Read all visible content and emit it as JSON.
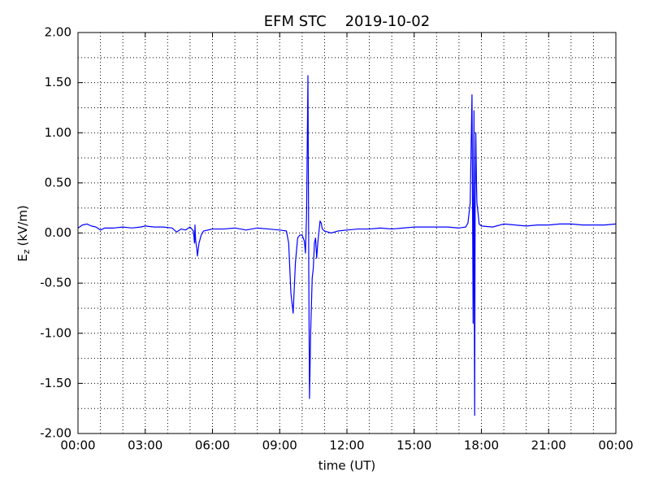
{
  "chart_data": {
    "type": "line",
    "title": "EFM STC    2019-10-02",
    "x_label": "time (UT)",
    "y_label": {
      "symbol": "E",
      "subscript": "z",
      "unit": "(kV/m)"
    },
    "xlim": [
      0,
      24
    ],
    "xticks": [
      {
        "value": 0,
        "label": "00:00"
      },
      {
        "value": 3,
        "label": "03:00"
      },
      {
        "value": 6,
        "label": "06:00"
      },
      {
        "value": 9,
        "label": "09:00"
      },
      {
        "value": 12,
        "label": "12:00"
      },
      {
        "value": 15,
        "label": "15:00"
      },
      {
        "value": 18,
        "label": "18:00"
      },
      {
        "value": 21,
        "label": "21:00"
      },
      {
        "value": 24,
        "label": "00:00"
      }
    ],
    "xminorticks": [
      1,
      2,
      4,
      5,
      7,
      8,
      10,
      11,
      13,
      14,
      16,
      17,
      19,
      20,
      22,
      23
    ],
    "ylim": [
      -2,
      2
    ],
    "yticks": [
      {
        "value": -2,
        "label": "-2.00"
      },
      {
        "value": -1.5,
        "label": "-1.50"
      },
      {
        "value": -1,
        "label": "-1.00"
      },
      {
        "value": -0.5,
        "label": "-0.50"
      },
      {
        "value": 0,
        "label": "0.00"
      },
      {
        "value": 0.5,
        "label": "0.50"
      },
      {
        "value": 1,
        "label": "1.00"
      },
      {
        "value": 1.5,
        "label": "1.50"
      },
      {
        "value": 2,
        "label": "2.00"
      }
    ],
    "yminorticks": [
      -1.75,
      -1.25,
      -0.75,
      -0.25,
      0.25,
      0.75,
      1.25,
      1.75
    ],
    "grid": true,
    "series": [
      {
        "name": "Ez",
        "color": "#0000ff",
        "x": [
          0,
          0.2,
          0.4,
          0.6,
          0.8,
          1.0,
          1.2,
          1.4,
          1.6,
          2.0,
          2.4,
          2.8,
          3.0,
          3.4,
          3.8,
          4.2,
          4.4,
          4.6,
          4.8,
          5.0,
          5.15,
          5.2,
          5.22,
          5.25,
          5.3,
          5.33,
          5.4,
          5.5,
          5.6,
          6.0,
          6.5,
          7.0,
          7.5,
          8.0,
          8.5,
          9.0,
          9.3,
          9.4,
          9.5,
          9.55,
          9.6,
          9.7,
          9.8,
          9.9,
          10.0,
          10.1,
          10.15,
          10.2,
          10.26,
          10.3,
          10.33,
          10.38,
          10.45,
          10.5,
          10.55,
          10.6,
          10.65,
          10.7,
          10.8,
          10.85,
          10.9,
          11.0,
          11.3,
          11.6,
          12.0,
          12.5,
          13.0,
          13.5,
          14.0,
          14.5,
          15.0,
          15.5,
          16.0,
          16.5,
          17.0,
          17.3,
          17.4,
          17.5,
          17.58,
          17.6,
          17.63,
          17.65,
          17.67,
          17.68,
          17.7,
          17.72,
          17.75,
          17.78,
          17.8,
          17.85,
          17.9,
          18.0,
          18.5,
          19.0,
          19.5,
          20.0,
          20.5,
          21.0,
          21.5,
          22.0,
          22.5,
          23.0,
          23.5,
          24.0
        ],
        "values": [
          0.05,
          0.08,
          0.09,
          0.07,
          0.06,
          0.03,
          0.05,
          0.05,
          0.05,
          0.06,
          0.05,
          0.06,
          0.07,
          0.06,
          0.06,
          0.05,
          0.01,
          0.04,
          0.03,
          0.06,
          0.02,
          -0.1,
          0.08,
          -0.08,
          -0.15,
          -0.23,
          -0.1,
          -0.02,
          0.02,
          0.04,
          0.04,
          0.05,
          0.03,
          0.05,
          0.04,
          0.03,
          0.02,
          -0.1,
          -0.6,
          -0.7,
          -0.8,
          -0.3,
          -0.05,
          -0.02,
          -0.02,
          -0.08,
          -0.2,
          0.2,
          1.57,
          -0.5,
          -1.65,
          -1.0,
          -0.45,
          -0.35,
          -0.1,
          -0.05,
          -0.25,
          -0.1,
          0.12,
          0.1,
          0.04,
          0.02,
          0.0,
          0.02,
          0.03,
          0.04,
          0.04,
          0.05,
          0.04,
          0.05,
          0.06,
          0.06,
          0.06,
          0.06,
          0.05,
          0.06,
          0.1,
          0.3,
          1.38,
          0.5,
          -0.9,
          0.3,
          1.22,
          -0.5,
          -1.82,
          0.2,
          1.0,
          0.5,
          0.3,
          0.2,
          0.09,
          0.07,
          0.06,
          0.09,
          0.08,
          0.07,
          0.08,
          0.08,
          0.09,
          0.09,
          0.08,
          0.08,
          0.08,
          0.09
        ]
      }
    ]
  }
}
